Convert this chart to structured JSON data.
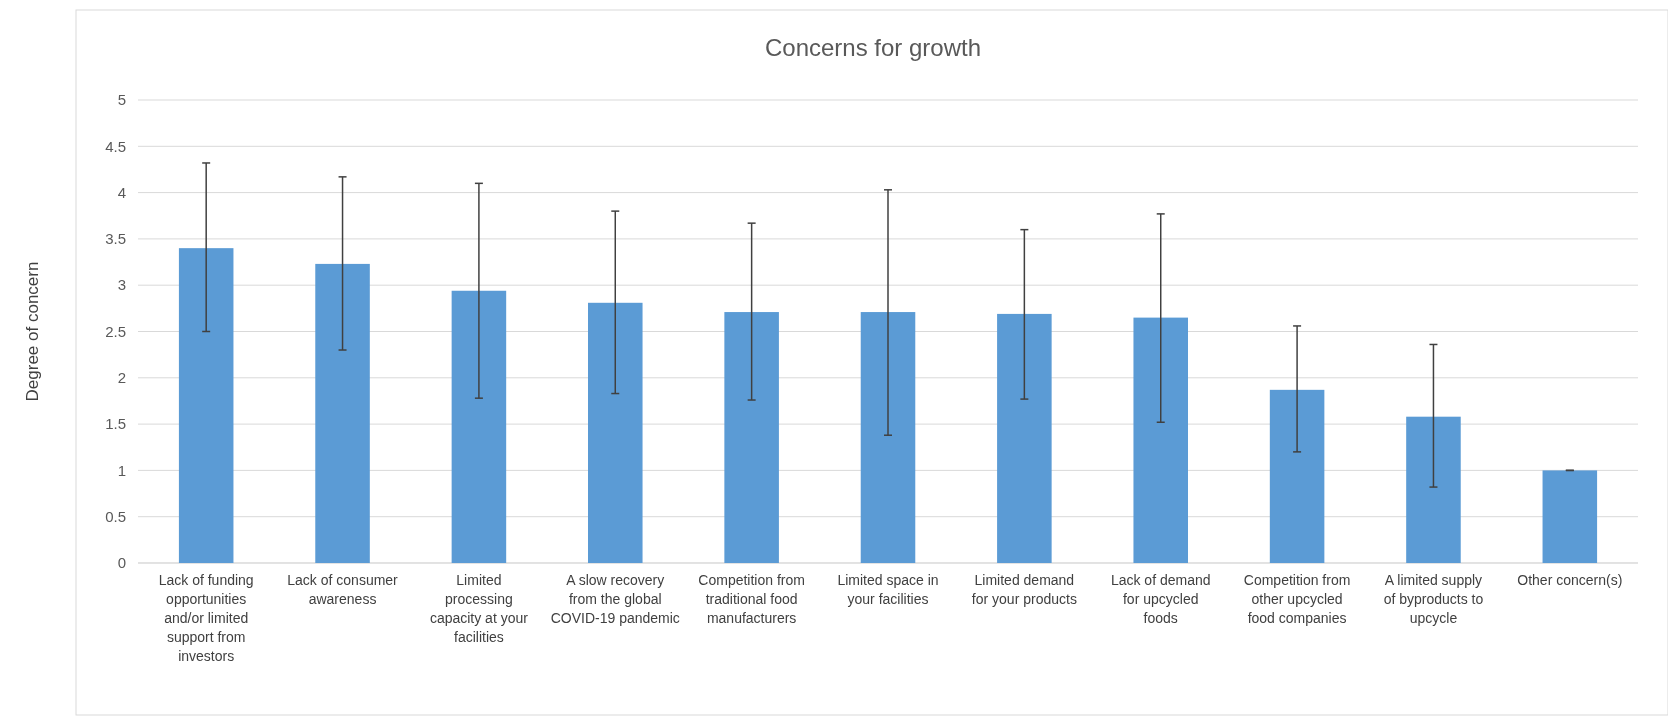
{
  "chart_data": {
    "type": "bar",
    "title": "Concerns for growth",
    "ylabel": "Degree of concern",
    "categories": [
      "Lack of funding opportunities and/or limited support from investors",
      "Lack of consumer awareness",
      "Limited processing capacity at your facilities",
      "A slow recovery from the global COVID-19 pandemic",
      "Competition from traditional food manufacturers",
      "Limited space in your facilities",
      "Limited demand for your products",
      "Lack of demand for upcycled foods",
      "Competition from other upcycled food companies",
      "A limited supply of byproducts to upcycle",
      "Other concern(s)"
    ],
    "values": [
      3.4,
      3.23,
      2.94,
      2.81,
      2.71,
      2.71,
      2.69,
      2.65,
      1.87,
      1.58,
      1.0
    ],
    "errors": [
      [
        2.5,
        4.32
      ],
      [
        2.3,
        4.17
      ],
      [
        1.78,
        4.1
      ],
      [
        1.83,
        3.8
      ],
      [
        1.76,
        3.67
      ],
      [
        1.38,
        4.03
      ],
      [
        1.77,
        3.6
      ],
      [
        1.52,
        3.77
      ],
      [
        1.2,
        2.56
      ],
      [
        0.82,
        2.36
      ],
      [
        1.0,
        1.0
      ]
    ],
    "color": "#5b9bd5",
    "ylim": [
      0,
      5
    ],
    "yticks": [
      0,
      0.5,
      1,
      1.5,
      2,
      2.5,
      3,
      3.5,
      4,
      4.5,
      5
    ],
    "grid": "y"
  }
}
